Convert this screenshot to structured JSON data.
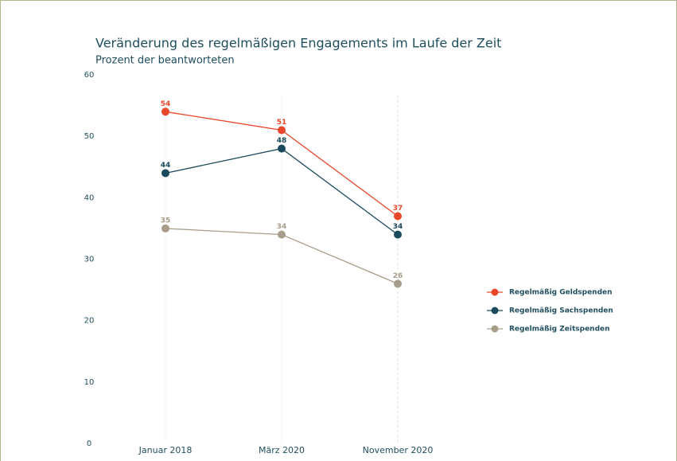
{
  "chart_data": {
    "type": "line",
    "title": "Veränderung des regelmäßigen Engagements im Laufe der Zeit",
    "subtitle": "Prozent der beantworteten",
    "categories": [
      "Januar 2018",
      "März 2020",
      "November 2020"
    ],
    "series": [
      {
        "name": "Regelmäßig Geldspenden",
        "color": "#e8472a",
        "values": [
          54,
          51,
          37
        ]
      },
      {
        "name": "Regelmäßig Sachspenden",
        "color": "#1a4a5c",
        "values": [
          44,
          48,
          34
        ]
      },
      {
        "name": "Regelmäßig Zeitspenden",
        "color": "#a89c8a",
        "values": [
          35,
          34,
          26
        ]
      }
    ],
    "ylim": [
      0,
      60
    ],
    "yticks": [
      0,
      10,
      20,
      30,
      40,
      50,
      60
    ],
    "legend": "right"
  }
}
